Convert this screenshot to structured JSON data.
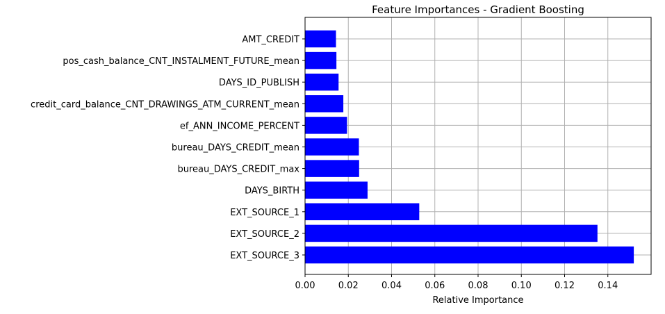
{
  "chart_data": {
    "type": "bar",
    "orientation": "horizontal",
    "title": "Feature Importances - Gradient Boosting",
    "xlabel": "Relative Importance",
    "ylabel": "",
    "categories": [
      "AMT_CREDIT",
      "pos_cash_balance_CNT_INSTALMENT_FUTURE_mean",
      "DAYS_ID_PUBLISH",
      "credit_card_balance_CNT_DRAWINGS_ATM_CURRENT_mean",
      "ef_ANN_INCOME_PERCENT",
      "bureau_DAYS_CREDIT_mean",
      "bureau_DAYS_CREDIT_max",
      "DAYS_BIRTH",
      "EXT_SOURCE_1",
      "EXT_SOURCE_2",
      "EXT_SOURCE_3"
    ],
    "values": [
      0.0143,
      0.0145,
      0.0155,
      0.0177,
      0.0194,
      0.0249,
      0.025,
      0.0289,
      0.0528,
      0.1352,
      0.152
    ],
    "xlim": [
      0,
      0.16
    ],
    "xticks": [
      0.0,
      0.02,
      0.04,
      0.06,
      0.08,
      0.1,
      0.12,
      0.14
    ],
    "xtick_labels": [
      "0.00",
      "0.02",
      "0.04",
      "0.06",
      "0.08",
      "0.10",
      "0.12",
      "0.14"
    ],
    "grid": true,
    "bar_color": "#0000ff",
    "grid_color": "#b0b0b0"
  }
}
